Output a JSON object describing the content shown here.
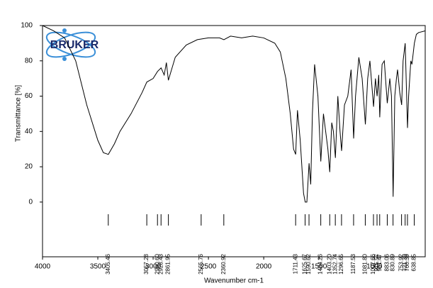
{
  "logo": {
    "text": "BRUKER"
  },
  "chart_data": {
    "type": "line",
    "x_label": "Wavenumber cm-1",
    "y_label": "Transmittance [%]",
    "x": [
      4000,
      3900,
      3800,
      3700,
      3600,
      3500,
      3450,
      3405,
      3350,
      3300,
      3200,
      3100,
      3057,
      3000,
      2960,
      2928,
      2900,
      2880,
      2862,
      2800,
      2700,
      2600,
      2500,
      2400,
      2360,
      2300,
      2200,
      2100,
      2000,
      1900,
      1850,
      1800,
      1760,
      1730,
      1711,
      1695,
      1670,
      1640,
      1625,
      1610,
      1590,
      1575,
      1560,
      1540,
      1510,
      1484,
      1460,
      1440,
      1420,
      1403,
      1385,
      1370,
      1352,
      1330,
      1310,
      1296,
      1270,
      1240,
      1210,
      1187,
      1170,
      1140,
      1110,
      1081,
      1060,
      1040,
      1007,
      990,
      975,
      960,
      951,
      930,
      910,
      883,
      860,
      845,
      830,
      815,
      800,
      790,
      770,
      753,
      740,
      721,
      700,
      690,
      670,
      660,
      638,
      620,
      600,
      540
    ],
    "series": [
      {
        "color": "#000000",
        "values": [
          100,
          97,
          93,
          80,
          55,
          35,
          28,
          27,
          33,
          40,
          50,
          62,
          68,
          70,
          74,
          76,
          72,
          79,
          69,
          82,
          89,
          92,
          93,
          93,
          92,
          94,
          93,
          94,
          93,
          90,
          85,
          70,
          50,
          30,
          27,
          52,
          35,
          5,
          0,
          0,
          22,
          10,
          50,
          78,
          60,
          23,
          50,
          40,
          30,
          17,
          45,
          40,
          25,
          60,
          40,
          29,
          55,
          60,
          75,
          36,
          60,
          82,
          70,
          44,
          70,
          80,
          54,
          70,
          60,
          72,
          48,
          78,
          80,
          56,
          70,
          60,
          3,
          60,
          70,
          75,
          62,
          55,
          80,
          90,
          42,
          60,
          80,
          78,
          90,
          95,
          96,
          97
        ]
      }
    ],
    "xlim": [
      4000,
      540
    ],
    "ylim": [
      -31,
      100
    ],
    "xticks": [
      4000,
      3500,
      3000,
      2500,
      2000,
      1500,
      1000
    ],
    "yticks": [
      0,
      20,
      40,
      60,
      80,
      100
    ],
    "peak_labels": [
      3405.46,
      3057.28,
      {
        "value": 2960.6,
        "label": "2960.60"
      },
      2928.43,
      2861.95,
      2565.76,
      2360.92,
      1711.43,
      1625.67,
      1590.62,
      1484.26,
      {
        "value": 1403.2,
        "label": "1403.20"
      },
      1352.74,
      1296.65,
      1187.53,
      {
        "value": 1081.8,
        "label": "1081.80"
      },
      1007.66,
      975.57,
      951.47,
      883.06,
      830.89,
      753.92,
      721.39,
      700.39,
      638.85
    ]
  }
}
